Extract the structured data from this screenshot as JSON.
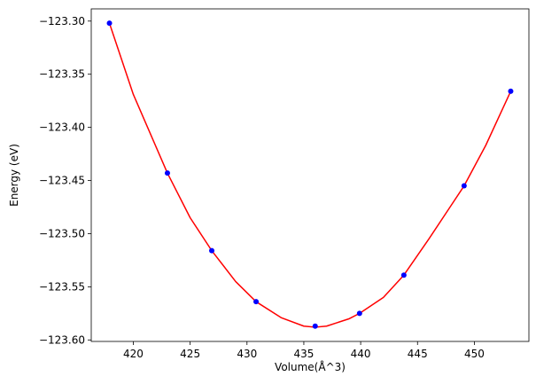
{
  "chart_data": {
    "type": "scatter",
    "title": "",
    "xlabel": "Volume(Å^3)",
    "ylabel": "Energy (eV)",
    "xlim": [
      416.3,
      454.8
    ],
    "ylim": [
      -123.6014,
      -123.2885
    ],
    "xticks": [
      420,
      425,
      430,
      435,
      440,
      445,
      450
    ],
    "yticks": [
      -123.3,
      -123.35,
      -123.4,
      -123.45,
      -123.5,
      -123.55,
      -123.6
    ],
    "xtick_labels": [
      "420",
      "425",
      "430",
      "435",
      "440",
      "445",
      "450"
    ],
    "ytick_labels": [
      "−123.30",
      "−123.35",
      "−123.40",
      "−123.45",
      "−123.50",
      "−123.55",
      "−123.60"
    ],
    "grid": false,
    "series": [
      {
        "kind": "points",
        "color": "#0000ff",
        "x": [
          417.9,
          423.0,
          426.9,
          430.8,
          436.0,
          439.9,
          443.8,
          449.1,
          453.2
        ],
        "y": [
          -123.302,
          -123.443,
          -123.516,
          -123.564,
          -123.587,
          -123.575,
          -123.539,
          -123.455,
          -123.366
        ]
      },
      {
        "kind": "fit-line",
        "color": "#ff0000",
        "x": [
          417.9,
          420.0,
          423.0,
          425.0,
          426.9,
          429.0,
          430.8,
          433.0,
          435.0,
          436.0,
          437.0,
          439.0,
          439.9,
          442.0,
          443.8,
          446.0,
          449.1,
          451.0,
          453.2
        ],
        "y": [
          -123.302,
          -123.369,
          -123.443,
          -123.485,
          -123.516,
          -123.545,
          -123.564,
          -123.579,
          -123.587,
          -123.588,
          -123.587,
          -123.58,
          -123.575,
          -123.56,
          -123.539,
          -123.505,
          -123.455,
          -123.417,
          -123.366
        ]
      }
    ]
  }
}
